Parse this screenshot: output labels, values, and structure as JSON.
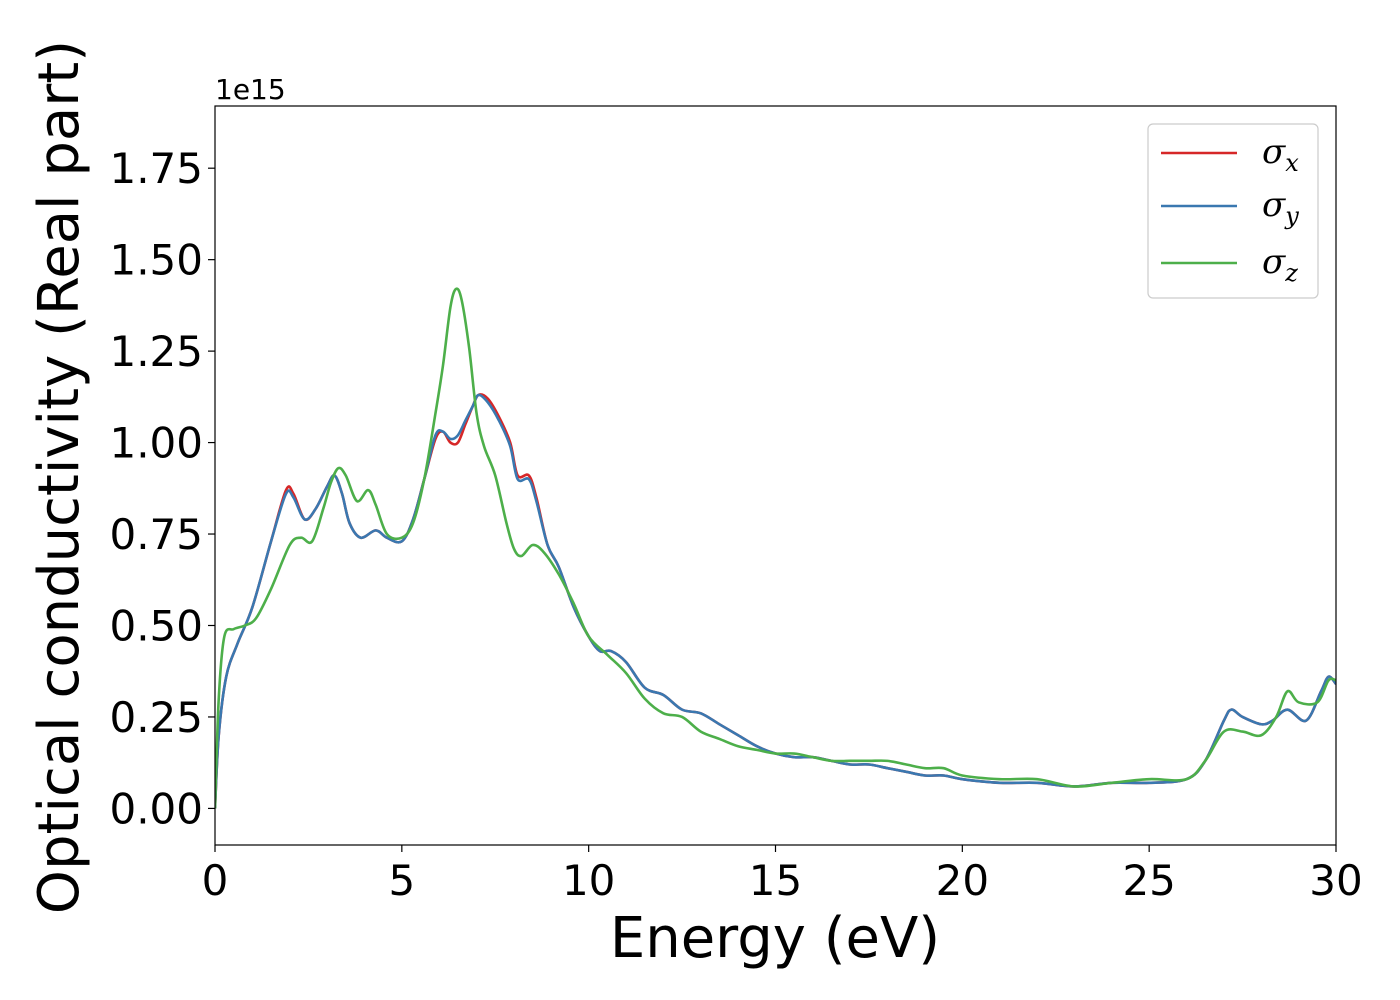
{
  "chart_data": {
    "type": "line",
    "title": "",
    "xlabel": "Energy (eV)",
    "ylabel": "Optical conductivity (Real part)",
    "y_offset_label": "1e15",
    "xlim": [
      0,
      30
    ],
    "ylim": [
      -0.1,
      1.92
    ],
    "xticks": [
      0,
      5,
      10,
      15,
      20,
      25,
      30
    ],
    "xtick_labels": [
      "0",
      "5",
      "10",
      "15",
      "20",
      "25",
      "30"
    ],
    "yticks": [
      0.0,
      0.25,
      0.5,
      0.75,
      1.0,
      1.25,
      1.5,
      1.75
    ],
    "ytick_labels": [
      "0.00",
      "0.25",
      "0.50",
      "0.75",
      "1.00",
      "1.25",
      "1.50",
      "1.75"
    ],
    "grid": false,
    "legend_placement": "top-right",
    "series": [
      {
        "name": "σx",
        "symbol": "σ",
        "sub": "x",
        "color": "#d62728",
        "x": [
          0,
          0.1,
          0.3,
          0.6,
          1.0,
          1.5,
          1.9,
          2.1,
          2.4,
          2.7,
          3.0,
          3.2,
          3.4,
          3.6,
          3.9,
          4.3,
          4.6,
          5.0,
          5.3,
          5.6,
          5.9,
          6.1,
          6.3,
          6.5,
          6.7,
          6.9,
          7.05,
          7.3,
          7.6,
          7.9,
          8.1,
          8.4,
          8.6,
          8.9,
          9.2,
          9.6,
          10.0,
          10.3,
          10.6,
          11.0,
          11.5,
          12.0,
          12.5,
          13.0,
          13.5,
          14.0,
          14.5,
          15.0,
          15.5,
          16.0,
          16.5,
          17.0,
          17.5,
          18.0,
          18.5,
          19.0,
          19.5,
          20.0,
          21.0,
          22.0,
          23.0,
          24.0,
          25.0,
          26.0,
          26.5,
          27.0,
          27.2,
          27.5,
          28.0,
          28.3,
          28.7,
          29.2,
          29.6,
          29.8,
          30.0
        ],
        "y": [
          0.0,
          0.2,
          0.36,
          0.45,
          0.55,
          0.73,
          0.87,
          0.86,
          0.79,
          0.82,
          0.88,
          0.91,
          0.86,
          0.78,
          0.74,
          0.76,
          0.74,
          0.73,
          0.79,
          0.9,
          1.01,
          1.03,
          1.0,
          1.0,
          1.05,
          1.1,
          1.13,
          1.12,
          1.07,
          1.0,
          0.91,
          0.91,
          0.85,
          0.72,
          0.66,
          0.55,
          0.47,
          0.43,
          0.43,
          0.4,
          0.33,
          0.31,
          0.27,
          0.26,
          0.23,
          0.2,
          0.17,
          0.15,
          0.14,
          0.14,
          0.13,
          0.12,
          0.12,
          0.11,
          0.1,
          0.09,
          0.09,
          0.08,
          0.07,
          0.07,
          0.06,
          0.07,
          0.07,
          0.08,
          0.13,
          0.24,
          0.27,
          0.25,
          0.23,
          0.24,
          0.27,
          0.24,
          0.32,
          0.36,
          0.34
        ]
      },
      {
        "name": "σy",
        "symbol": "σ",
        "sub": "y",
        "color": "#3a78b0",
        "x": [
          0,
          0.1,
          0.3,
          0.6,
          1.0,
          1.5,
          1.9,
          2.1,
          2.4,
          2.7,
          3.0,
          3.2,
          3.4,
          3.6,
          3.9,
          4.3,
          4.6,
          5.0,
          5.3,
          5.6,
          5.9,
          6.1,
          6.3,
          6.5,
          6.7,
          6.9,
          7.05,
          7.3,
          7.6,
          7.9,
          8.1,
          8.4,
          8.6,
          8.9,
          9.2,
          9.6,
          10.0,
          10.3,
          10.6,
          11.0,
          11.5,
          12.0,
          12.5,
          13.0,
          13.5,
          14.0,
          14.5,
          15.0,
          15.5,
          16.0,
          16.5,
          17.0,
          17.5,
          18.0,
          18.5,
          19.0,
          19.5,
          20.0,
          21.0,
          22.0,
          23.0,
          24.0,
          25.0,
          26.0,
          26.5,
          27.0,
          27.2,
          27.5,
          28.0,
          28.3,
          28.7,
          29.2,
          29.6,
          29.8,
          30.0
        ],
        "y": [
          0.0,
          0.2,
          0.36,
          0.45,
          0.55,
          0.73,
          0.86,
          0.85,
          0.79,
          0.82,
          0.88,
          0.91,
          0.86,
          0.78,
          0.74,
          0.76,
          0.74,
          0.73,
          0.79,
          0.9,
          1.02,
          1.03,
          1.01,
          1.02,
          1.06,
          1.1,
          1.13,
          1.11,
          1.06,
          0.99,
          0.9,
          0.9,
          0.84,
          0.72,
          0.66,
          0.55,
          0.47,
          0.43,
          0.43,
          0.4,
          0.33,
          0.31,
          0.27,
          0.26,
          0.23,
          0.2,
          0.17,
          0.15,
          0.14,
          0.14,
          0.13,
          0.12,
          0.12,
          0.11,
          0.1,
          0.09,
          0.09,
          0.08,
          0.07,
          0.07,
          0.06,
          0.07,
          0.07,
          0.08,
          0.13,
          0.24,
          0.27,
          0.25,
          0.23,
          0.24,
          0.27,
          0.24,
          0.32,
          0.36,
          0.34
        ]
      },
      {
        "name": "σz",
        "symbol": "σ",
        "sub": "z",
        "color": "#4daf4a",
        "x": [
          0,
          0.1,
          0.25,
          0.5,
          0.8,
          1.1,
          1.5,
          2.0,
          2.3,
          2.6,
          2.9,
          3.1,
          3.3,
          3.5,
          3.8,
          4.1,
          4.3,
          4.6,
          5.0,
          5.3,
          5.6,
          5.9,
          6.1,
          6.3,
          6.45,
          6.6,
          6.8,
          7.0,
          7.2,
          7.5,
          7.8,
          8.0,
          8.2,
          8.5,
          8.8,
          9.2,
          9.6,
          10.0,
          10.5,
          11.0,
          11.5,
          12.0,
          12.5,
          13.0,
          13.5,
          14.0,
          14.5,
          15.0,
          15.5,
          16.0,
          16.5,
          17.0,
          17.5,
          18.0,
          18.5,
          19.0,
          19.5,
          20.0,
          21.0,
          22.0,
          23.0,
          24.0,
          25.0,
          26.0,
          26.5,
          27.0,
          27.5,
          28.0,
          28.4,
          28.7,
          29.0,
          29.5,
          29.8,
          30.0
        ],
        "y": [
          0.0,
          0.3,
          0.47,
          0.49,
          0.5,
          0.52,
          0.6,
          0.72,
          0.74,
          0.73,
          0.82,
          0.89,
          0.93,
          0.91,
          0.84,
          0.87,
          0.83,
          0.75,
          0.74,
          0.78,
          0.9,
          1.08,
          1.21,
          1.37,
          1.42,
          1.39,
          1.26,
          1.08,
          0.99,
          0.91,
          0.78,
          0.71,
          0.69,
          0.72,
          0.7,
          0.64,
          0.56,
          0.47,
          0.42,
          0.37,
          0.3,
          0.26,
          0.25,
          0.21,
          0.19,
          0.17,
          0.16,
          0.15,
          0.15,
          0.14,
          0.13,
          0.13,
          0.13,
          0.13,
          0.12,
          0.11,
          0.11,
          0.09,
          0.08,
          0.08,
          0.06,
          0.07,
          0.08,
          0.08,
          0.13,
          0.21,
          0.21,
          0.2,
          0.25,
          0.32,
          0.29,
          0.29,
          0.35,
          0.35
        ]
      }
    ]
  }
}
